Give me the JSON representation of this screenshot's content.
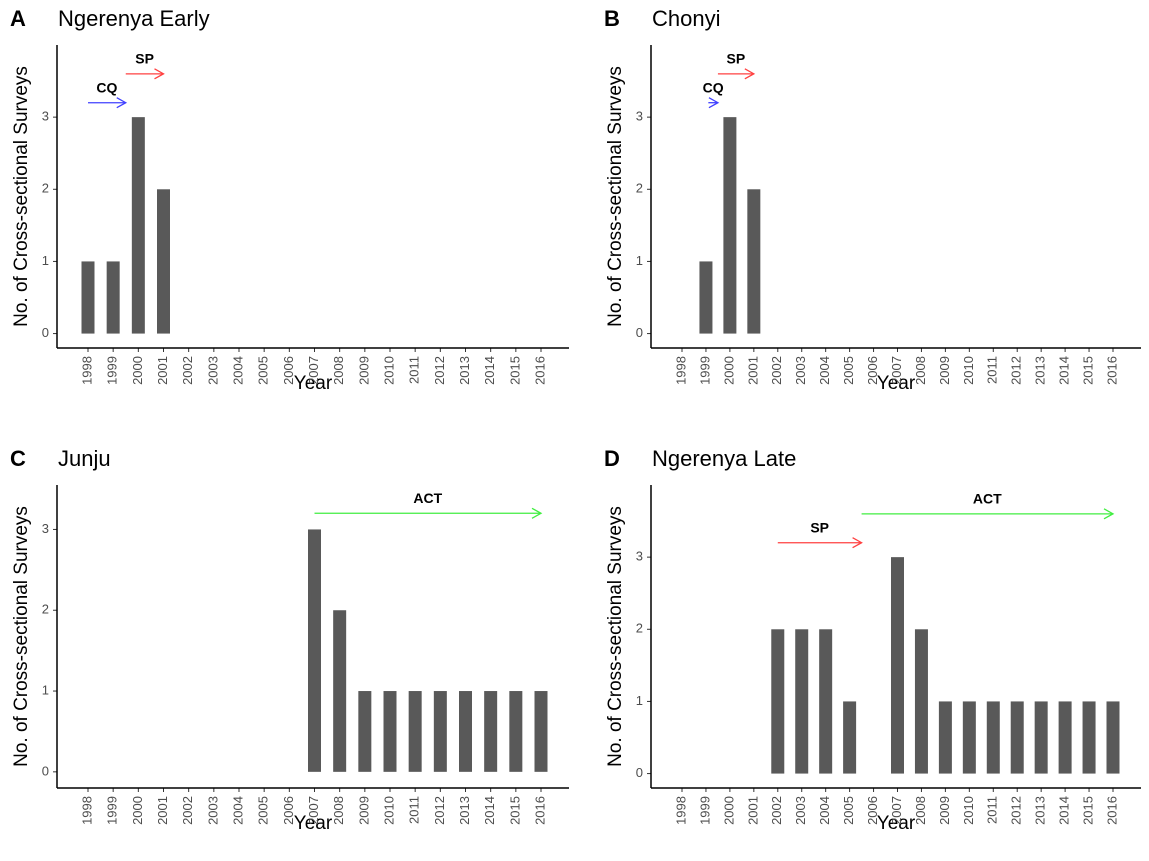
{
  "chart_data": [
    {
      "type": "bar",
      "panel": "A",
      "title": "Ngerenya Early",
      "x_label": "Year",
      "y_label": "No. of Cross-sectional Surveys",
      "categories": [
        "1998",
        "1999",
        "2000",
        "2001",
        "2002",
        "2003",
        "2004",
        "2005",
        "2006",
        "2007",
        "2008",
        "2009",
        "2010",
        "2011",
        "2012",
        "2013",
        "2014",
        "2015",
        "2016"
      ],
      "values": [
        1,
        1,
        3,
        2,
        0,
        0,
        0,
        0,
        0,
        0,
        0,
        0,
        0,
        0,
        0,
        0,
        0,
        0,
        0
      ],
      "color": "#595959",
      "ylim": [
        -0.2,
        4.0
      ],
      "yticks": [
        0,
        1,
        2,
        3
      ],
      "annotations": [
        {
          "text": "CQ",
          "color": "#4040ff",
          "x": [
            1998,
            1999.5
          ],
          "y": 3.2
        },
        {
          "text": "SP",
          "color": "#ff4040",
          "x": [
            1999.5,
            2001
          ],
          "y": 3.6
        }
      ]
    },
    {
      "type": "bar",
      "panel": "B",
      "title": "Chonyi",
      "x_label": "Year",
      "y_label": "No. of Cross-sectional Surveys",
      "categories": [
        "1998",
        "1999",
        "2000",
        "2001",
        "2002",
        "2003",
        "2004",
        "2005",
        "2006",
        "2007",
        "2008",
        "2009",
        "2010",
        "2011",
        "2012",
        "2013",
        "2014",
        "2015",
        "2016"
      ],
      "values": [
        0,
        1,
        3,
        2,
        0,
        0,
        0,
        0,
        0,
        0,
        0,
        0,
        0,
        0,
        0,
        0,
        0,
        0,
        0
      ],
      "color": "#595959",
      "ylim": [
        -0.2,
        4.0
      ],
      "yticks": [
        0,
        1,
        2,
        3
      ],
      "annotations": [
        {
          "text": "CQ",
          "color": "#4040ff",
          "x": [
            1999.1,
            1999.5
          ],
          "y": 3.2
        },
        {
          "text": "SP",
          "color": "#ff4040",
          "x": [
            1999.5,
            2001
          ],
          "y": 3.6
        }
      ]
    },
    {
      "type": "bar",
      "panel": "C",
      "title": "Junju",
      "x_label": "Year",
      "y_label": "No. of Cross-sectional Surveys",
      "categories": [
        "1998",
        "1999",
        "2000",
        "2001",
        "2002",
        "2003",
        "2004",
        "2005",
        "2006",
        "2007",
        "2008",
        "2009",
        "2010",
        "2011",
        "2012",
        "2013",
        "2014",
        "2015",
        "2016"
      ],
      "values": [
        0,
        0,
        0,
        0,
        0,
        0,
        0,
        0,
        0,
        3,
        2,
        1,
        1,
        1,
        1,
        1,
        1,
        1,
        1
      ],
      "color": "#595959",
      "ylim": [
        -0.2,
        3.55
      ],
      "yticks": [
        0,
        1,
        2,
        3
      ],
      "annotations": [
        {
          "text": "ACT",
          "color": "#40ee40",
          "x": [
            2007,
            2016
          ],
          "y": 3.2
        }
      ]
    },
    {
      "type": "bar",
      "panel": "D",
      "title": "Ngerenya Late",
      "x_label": "Year",
      "y_label": "No. of Cross-sectional Surveys",
      "categories": [
        "1998",
        "1999",
        "2000",
        "2001",
        "2002",
        "2003",
        "2004",
        "2005",
        "2006",
        "2007",
        "2008",
        "2009",
        "2010",
        "2011",
        "2012",
        "2013",
        "2014",
        "2015",
        "2016"
      ],
      "values": [
        0,
        0,
        0,
        0,
        2,
        2,
        2,
        1,
        0,
        3,
        2,
        1,
        1,
        1,
        1,
        1,
        1,
        1,
        1
      ],
      "color": "#595959",
      "ylim": [
        -0.2,
        4.0
      ],
      "yticks": [
        0,
        1,
        2,
        3
      ],
      "annotations": [
        {
          "text": "SP",
          "color": "#ff4040",
          "x": [
            2002,
            2005.5
          ],
          "y": 3.2
        },
        {
          "text": "ACT",
          "color": "#40ee40",
          "x": [
            2005.5,
            2016
          ],
          "y": 3.6
        }
      ]
    }
  ]
}
